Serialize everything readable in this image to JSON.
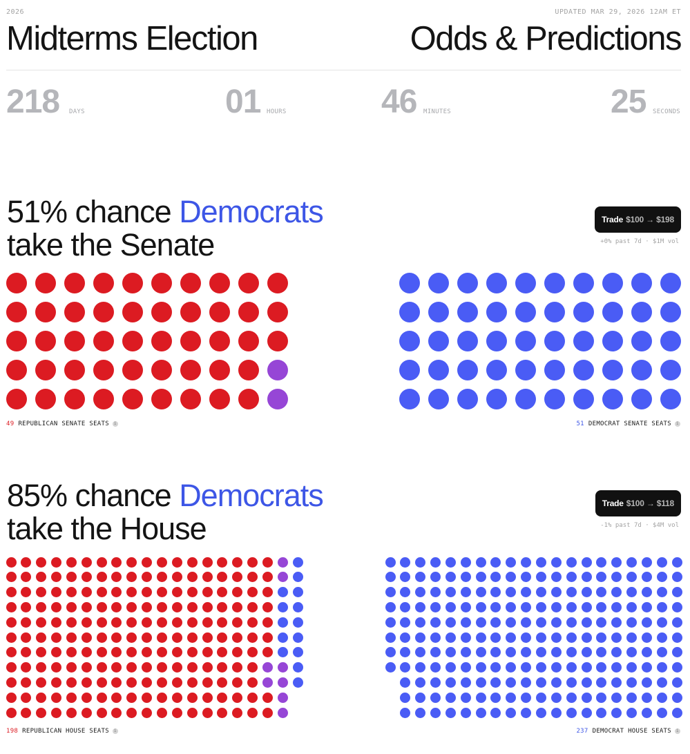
{
  "header": {
    "year": "2026",
    "updated": "UPDATED MAR 29, 2026 12AM ET",
    "title_left": "Midterms Election",
    "title_right": "Odds & Predictions"
  },
  "countdown": [
    {
      "value": "218",
      "unit": "DAYS"
    },
    {
      "value": "01",
      "unit": "HOURS"
    },
    {
      "value": "46",
      "unit": "MINUTES"
    },
    {
      "value": "25",
      "unit": "SECONDS"
    }
  ],
  "colors": {
    "republican": "#dc1b22",
    "democrat": "#4a5cf5",
    "tossup": "#9646d6",
    "accent": "#3d56e6"
  },
  "senate": {
    "pct_text": "51% chance ",
    "party": "Democrats",
    "line2": "take the Senate",
    "trade": {
      "label": "Trade",
      "amount": "$100 → $198"
    },
    "meta": "+0% past 7d · $1M vol",
    "rep": {
      "count": "49",
      "label": "REPUBLICAN SENATE SEATS"
    },
    "dem": {
      "count": "51",
      "label": "DEMOCRAT SENATE SEATS"
    }
  },
  "house": {
    "pct_text": "85% chance ",
    "party": "Democrats",
    "line2": "take the House",
    "trade": {
      "label": "Trade",
      "amount": "$100 → $118"
    },
    "meta": "-1% past 7d · $4M vol",
    "rep": {
      "count": "198",
      "label": "REPUBLICAN HOUSE SEATS"
    },
    "dem": {
      "count": "237",
      "label": "DEMOCRAT HOUSE SEATS"
    }
  },
  "icons": {
    "info": "info-icon"
  },
  "info_glyph": "i"
}
